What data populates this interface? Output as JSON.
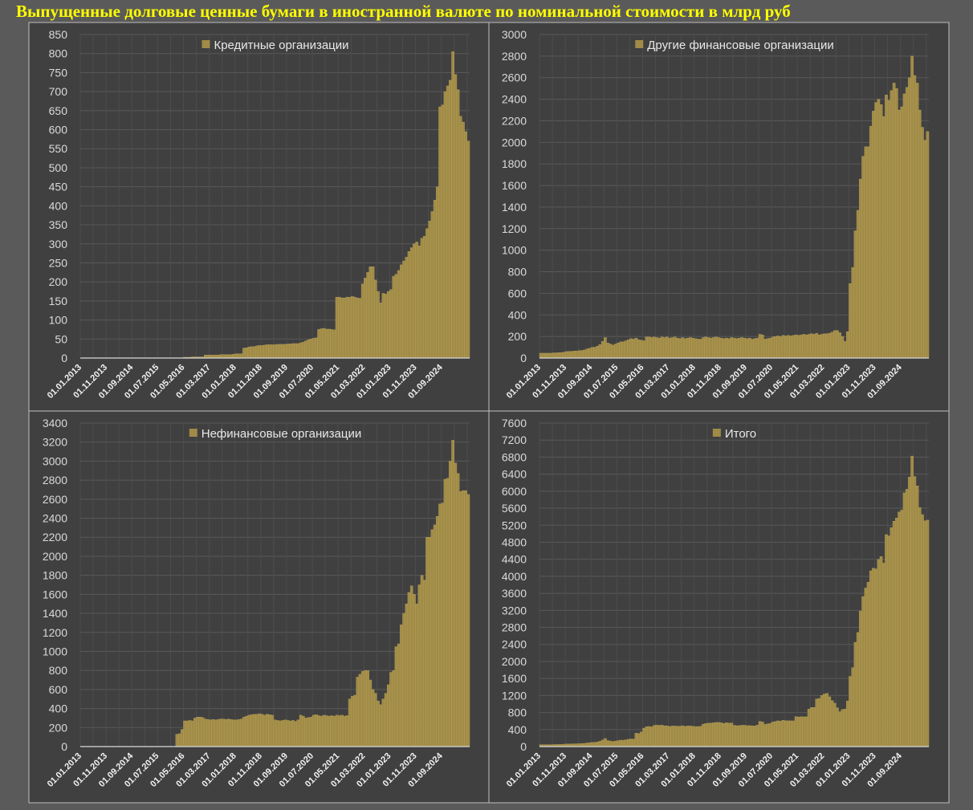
{
  "title": "Выпущенные долговые ценные бумаги в иностранной валюте по номинальной стоимости в млрд руб",
  "colors": {
    "background": "#5a5a5a",
    "panel": "#404040",
    "bar": "#a08b47",
    "title": "#ffff00"
  },
  "chart_data": [
    {
      "type": "bar",
      "legend": "Кредитные организации",
      "legend_position": "top-center",
      "grid": true,
      "ylim": [
        0,
        850
      ],
      "ytick_step": 50,
      "x_tick_labels": [
        "01.01.2013",
        "01.11.2013",
        "01.09.2014",
        "01.07.2015",
        "01.05.2016",
        "01.03.2017",
        "01.01.2018",
        "01.11.2018",
        "01.09.2019",
        "01.07.2020",
        "01.05.2021",
        "01.03.2022",
        "01.01.2023",
        "01.11.2023",
        "01.09.2024"
      ],
      "values": [
        0,
        0,
        0,
        0,
        0,
        0,
        0,
        0,
        0,
        0,
        0,
        0,
        0,
        0,
        0,
        0,
        0,
        0,
        0,
        0,
        0,
        0,
        0,
        0,
        0,
        0,
        0,
        0,
        0,
        0,
        0,
        0,
        0,
        0,
        0,
        0,
        0,
        0,
        0,
        0,
        2,
        2,
        2,
        3,
        3,
        3,
        3,
        3,
        8,
        8,
        8,
        8,
        8,
        8,
        9,
        9,
        9,
        9,
        9,
        10,
        11,
        11,
        11,
        26,
        27,
        29,
        30,
        30,
        32,
        33,
        33,
        34,
        35,
        35,
        35,
        35,
        36,
        36,
        36,
        36,
        37,
        37,
        38,
        38,
        38,
        40,
        42,
        45,
        48,
        50,
        52,
        53,
        75,
        77,
        78,
        76,
        76,
        75,
        74,
        160,
        160,
        158,
        158,
        160,
        160,
        162,
        160,
        158,
        157,
        195,
        210,
        225,
        240,
        240,
        205,
        175,
        145,
        170,
        168,
        175,
        180,
        215,
        220,
        230,
        245,
        255,
        265,
        280,
        290,
        300,
        305,
        295,
        315,
        320,
        340,
        360,
        385,
        415,
        450,
        660,
        665,
        700,
        715,
        730,
        805,
        745,
        705,
        635,
        620,
        595,
        570
      ]
    },
    {
      "type": "bar",
      "legend": "Другие финансовые организации",
      "legend_position": "top-center",
      "grid": true,
      "ylim": [
        0,
        3000
      ],
      "ytick_step": 200,
      "x_tick_labels": [
        "01.01.2013",
        "01.11.2013",
        "01.09.2014",
        "01.07.2015",
        "01.05.2016",
        "01.03.2017",
        "01.01.2018",
        "01.11.2018",
        "01.09.2019",
        "01.07.2020",
        "01.05.2021",
        "01.03.2022",
        "01.01.2023",
        "01.11.2023",
        "01.09.2024"
      ],
      "values": [
        45,
        45,
        45,
        45,
        45,
        48,
        48,
        50,
        50,
        55,
        60,
        62,
        62,
        65,
        65,
        70,
        70,
        75,
        85,
        90,
        100,
        100,
        110,
        125,
        155,
        190,
        140,
        130,
        120,
        130,
        140,
        150,
        150,
        160,
        170,
        180,
        175,
        185,
        170,
        165,
        160,
        195,
        195,
        190,
        195,
        190,
        185,
        195,
        190,
        195,
        185,
        190,
        195,
        185,
        180,
        190,
        180,
        185,
        190,
        185,
        180,
        175,
        175,
        190,
        195,
        190,
        185,
        190,
        195,
        190,
        185,
        180,
        185,
        180,
        190,
        185,
        180,
        185,
        190,
        185,
        180,
        185,
        175,
        180,
        185,
        220,
        215,
        175,
        180,
        185,
        195,
        200,
        205,
        200,
        210,
        205,
        210,
        205,
        210,
        215,
        210,
        215,
        220,
        215,
        220,
        225,
        220,
        230,
        215,
        220,
        225,
        225,
        230,
        240,
        255,
        255,
        235,
        200,
        155,
        245,
        690,
        840,
        1180,
        1370,
        1660,
        1870,
        1960,
        1960,
        2150,
        2290,
        2370,
        2400,
        2350,
        2240,
        2440,
        2390,
        2480,
        2550,
        2500,
        2300,
        2330,
        2450,
        2510,
        2600,
        2800,
        2620,
        2550,
        2300,
        2140,
        2020,
        2100
      ]
    },
    {
      "type": "bar",
      "legend": "Нефинансовые организации",
      "legend_position": "top-center",
      "grid": true,
      "ylim": [
        0,
        3400
      ],
      "ytick_step": 200,
      "x_tick_labels": [
        "01.01.2013",
        "01.11.2013",
        "01.09.2014",
        "01.07.2015",
        "01.05.2016",
        "01.03.2017",
        "01.01.2018",
        "01.11.2018",
        "01.09.2019",
        "01.07.2020",
        "01.05.2021",
        "01.03.2022",
        "01.01.2023",
        "01.11.2023",
        "01.09.2024"
      ],
      "values": [
        0,
        0,
        0,
        0,
        0,
        0,
        0,
        0,
        0,
        0,
        0,
        0,
        0,
        0,
        0,
        0,
        0,
        0,
        0,
        0,
        0,
        0,
        0,
        0,
        0,
        0,
        0,
        0,
        0,
        0,
        0,
        0,
        0,
        0,
        0,
        0,
        0,
        130,
        135,
        180,
        270,
        270,
        275,
        270,
        300,
        310,
        310,
        305,
        290,
        285,
        280,
        285,
        280,
        285,
        290,
        290,
        285,
        290,
        285,
        280,
        280,
        285,
        290,
        310,
        320,
        330,
        335,
        340,
        340,
        345,
        340,
        330,
        340,
        335,
        330,
        280,
        275,
        270,
        275,
        280,
        275,
        270,
        275,
        265,
        280,
        330,
        320,
        300,
        305,
        310,
        330,
        335,
        325,
        320,
        330,
        325,
        320,
        325,
        320,
        330,
        325,
        330,
        320,
        325,
        500,
        530,
        540,
        730,
        760,
        790,
        800,
        800,
        700,
        600,
        560,
        480,
        440,
        500,
        560,
        650,
        780,
        800,
        1050,
        1080,
        1280,
        1400,
        1500,
        1620,
        1690,
        1600,
        1500,
        1700,
        1800,
        1750,
        2200,
        2200,
        2280,
        2330,
        2420,
        2550,
        2560,
        2810,
        2820,
        3000,
        3220,
        2980,
        2870,
        2680,
        2690,
        2690,
        2650
      ]
    },
    {
      "type": "bar",
      "legend": "Итого",
      "legend_position": "top-center",
      "grid": true,
      "ylim": [
        0,
        7600
      ],
      "ytick_step": 400,
      "x_tick_labels": [
        "01.01.2013",
        "01.11.2013",
        "01.09.2014",
        "01.07.2015",
        "01.05.2016",
        "01.03.2017",
        "01.01.2018",
        "01.11.2018",
        "01.09.2019",
        "01.07.2020",
        "01.05.2021",
        "01.03.2022",
        "01.01.2023",
        "01.11.2023",
        "01.09.2024"
      ],
      "values": [
        45,
        45,
        45,
        45,
        45,
        48,
        48,
        50,
        50,
        55,
        60,
        62,
        62,
        65,
        65,
        70,
        70,
        75,
        85,
        90,
        100,
        100,
        110,
        125,
        155,
        190,
        140,
        130,
        120,
        130,
        140,
        150,
        150,
        160,
        170,
        180,
        175,
        315,
        305,
        345,
        432,
        467,
        472,
        463,
        498,
        503,
        498,
        503,
        488,
        488,
        473,
        483,
        483,
        478,
        479,
        489,
        474,
        484,
        484,
        475,
        471,
        471,
        476,
        526,
        542,
        549,
        550,
        560,
        567,
        568,
        558,
        544,
        560,
        550,
        555,
        500,
        491,
        491,
        501,
        501,
        492,
        492,
        488,
        483,
        503,
        590,
        577,
        520,
        533,
        545,
        577,
        588,
        605,
        597,
        618,
        606,
        606,
        605,
        604,
        705,
        695,
        703,
        698,
        700,
        880,
        917,
        920,
        1118,
        1132,
        1205,
        1235,
        1250,
        1170,
        1080,
        1020,
        910,
        820,
        870,
        883,
        1070,
        1650,
        1855,
        2450,
        2680,
        3185,
        3525,
        3725,
        3860,
        4130,
        4190,
        4175,
        4395,
        4465,
        4310,
        4980,
        4950,
        5145,
        5295,
        5370,
        5510,
        5555,
        5960,
        6045,
        6330,
        6825,
        6345,
        6125,
        5615,
        5450,
        5305,
        5320
      ]
    }
  ]
}
